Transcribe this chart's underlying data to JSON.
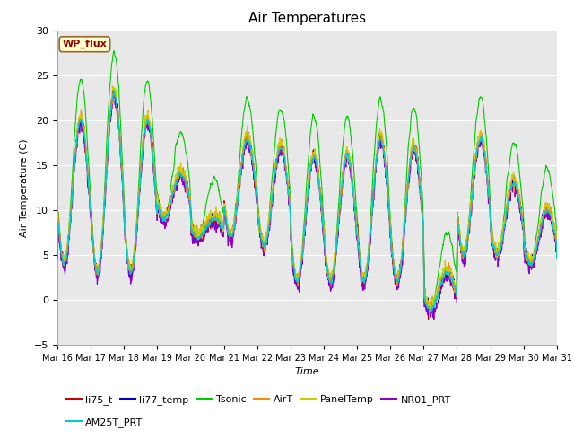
{
  "title": "Air Temperatures",
  "ylabel": "Air Temperature (C)",
  "xlabel": "Time",
  "ylim": [
    -5,
    30
  ],
  "fig_facecolor": "#ffffff",
  "plot_bg_color": "#e8e8e8",
  "series": {
    "li75_t": {
      "color": "#cc0000",
      "lw": 0.8
    },
    "li77_temp": {
      "color": "#0000cc",
      "lw": 0.8
    },
    "Tsonic": {
      "color": "#00cc00",
      "lw": 0.8
    },
    "AirT": {
      "color": "#ff8800",
      "lw": 0.8
    },
    "PanelTemp": {
      "color": "#cccc00",
      "lw": 0.8
    },
    "NR01_PRT": {
      "color": "#8800cc",
      "lw": 0.8
    },
    "AM25T_PRT": {
      "color": "#00cccc",
      "lw": 1.0
    }
  },
  "xtick_labels": [
    "Mar 16",
    "Mar 17",
    "Mar 18",
    "Mar 19",
    "Mar 20",
    "Mar 21",
    "Mar 22",
    "Mar 23",
    "Mar 24",
    "Mar 25",
    "Mar 26",
    "Mar 27",
    "Mar 28",
    "Mar 29",
    "Mar 30",
    "Mar 31"
  ],
  "ytick_vals": [
    -5,
    0,
    5,
    10,
    15,
    20,
    25,
    30
  ],
  "wp_flux_box": {
    "text": "WP_flux",
    "facecolor": "#ffffcc",
    "edgecolor": "#996633",
    "textcolor": "#990000"
  },
  "legend_order": [
    "li75_t",
    "li77_temp",
    "Tsonic",
    "AirT",
    "PanelTemp",
    "NR01_PRT",
    "AM25T_PRT"
  ],
  "seed": 12345,
  "n_days": 15,
  "pts_per_day": 144
}
